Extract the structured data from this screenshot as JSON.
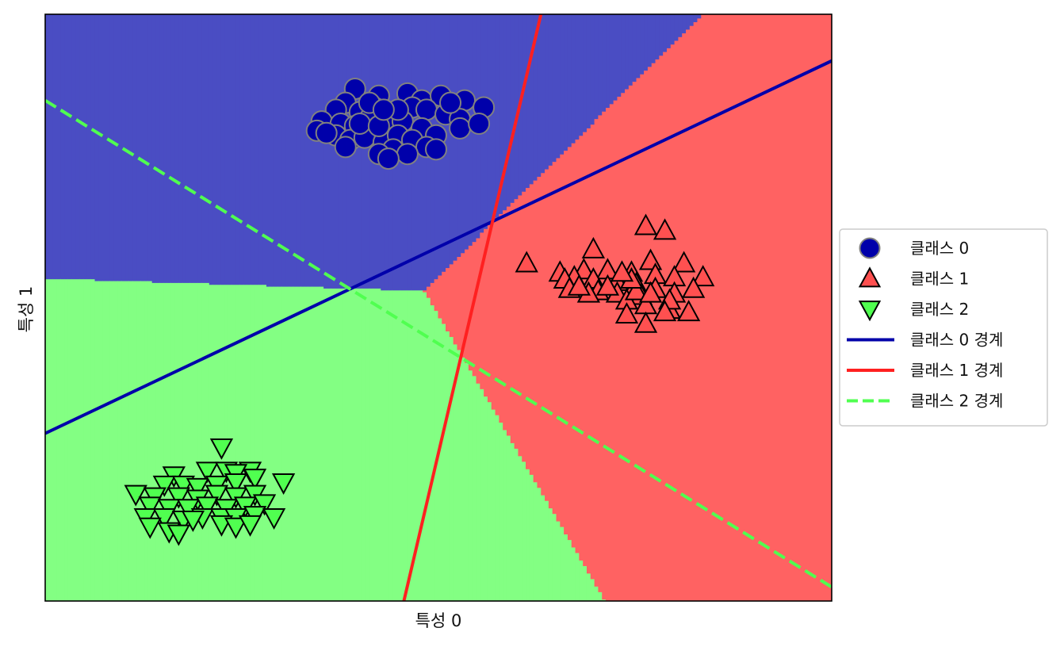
{
  "chart_data": {
    "type": "scatter",
    "title": "",
    "xlabel": "특성 0",
    "ylabel": "특성 1",
    "xlim": [
      -10.2,
      6.3
    ],
    "ylim": [
      -11.6,
      13.6
    ],
    "xticks_visible": false,
    "yticks_visible": false,
    "grid": false,
    "legend_position": "center-right-outside",
    "region_colors": [
      "#4a4dc3",
      "#ff6262",
      "#83ff83"
    ],
    "series": [
      {
        "name": "클래스 0",
        "marker": "circle",
        "color": "#0000aa",
        "edge_color": "#808080",
        "points": [
          [
            -3.7,
            10.4
          ],
          [
            -3.9,
            9.8
          ],
          [
            -3.2,
            10.1
          ],
          [
            -2.6,
            10.2
          ],
          [
            -2.3,
            9.9
          ],
          [
            -1.9,
            10.1
          ],
          [
            -1.6,
            9.7
          ],
          [
            -1.4,
            9.9
          ],
          [
            -4.1,
            9.5
          ],
          [
            -3.6,
            9.4
          ],
          [
            -3.3,
            9.6
          ],
          [
            -2.9,
            9.4
          ],
          [
            -2.5,
            9.6
          ],
          [
            -2.2,
            9.5
          ],
          [
            -1.8,
            9.3
          ],
          [
            -1.5,
            9.1
          ],
          [
            -4.4,
            9.0
          ],
          [
            -4.0,
            8.9
          ],
          [
            -3.7,
            8.8
          ],
          [
            -3.4,
            9.1
          ],
          [
            -3.0,
            8.8
          ],
          [
            -2.7,
            9.0
          ],
          [
            -2.3,
            8.7
          ],
          [
            -2.0,
            8.4
          ],
          [
            -4.5,
            8.6
          ],
          [
            -4.1,
            8.4
          ],
          [
            -3.8,
            8.2
          ],
          [
            -3.5,
            8.3
          ],
          [
            -3.1,
            8.1
          ],
          [
            -2.8,
            8.4
          ],
          [
            -2.5,
            8.2
          ],
          [
            -2.2,
            7.9
          ],
          [
            -4.3,
            8.5
          ],
          [
            -3.9,
            7.9
          ],
          [
            -2.9,
            7.8
          ],
          [
            -3.2,
            7.6
          ],
          [
            -2.6,
            7.6
          ],
          [
            -3.0,
            7.4
          ],
          [
            -1.7,
            9.8
          ],
          [
            -2.0,
            7.8
          ],
          [
            -3.4,
            9.8
          ],
          [
            -3.6,
            8.9
          ],
          [
            -2.8,
            9.5
          ],
          [
            -3.2,
            8.8
          ],
          [
            -1.5,
            8.7
          ],
          [
            -1.0,
            9.6
          ],
          [
            -1.1,
            8.9
          ],
          [
            -3.1,
            9.5
          ]
        ]
      },
      {
        "name": "클래스 1",
        "marker": "triangle-up",
        "color": "#ff5050",
        "edge_color": "#000000",
        "points": [
          [
            2.4,
            4.5
          ],
          [
            2.8,
            4.3
          ],
          [
            1.3,
            3.5
          ],
          [
            2.5,
            3.0
          ],
          [
            3.2,
            2.9
          ],
          [
            -0.1,
            2.9
          ],
          [
            0.6,
            2.5
          ],
          [
            1.1,
            2.6
          ],
          [
            1.6,
            2.6
          ],
          [
            2.1,
            2.5
          ],
          [
            2.6,
            2.4
          ],
          [
            3.0,
            2.3
          ],
          [
            3.6,
            2.3
          ],
          [
            0.9,
            2.3
          ],
          [
            0.7,
            2.2
          ],
          [
            1.3,
            2.2
          ],
          [
            1.8,
            2.1
          ],
          [
            2.2,
            2.0
          ],
          [
            2.6,
            1.8
          ],
          [
            3.0,
            1.6
          ],
          [
            3.4,
            1.8
          ],
          [
            1.4,
            1.7
          ],
          [
            1.8,
            1.6
          ],
          [
            2.3,
            1.5
          ],
          [
            2.0,
            1.3
          ],
          [
            2.4,
            1.1
          ],
          [
            2.9,
            0.9
          ],
          [
            3.3,
            0.8
          ],
          [
            0.8,
            1.8
          ],
          [
            1.6,
            1.9
          ],
          [
            2.2,
            1.7
          ],
          [
            2.0,
            0.7
          ],
          [
            2.4,
            0.3
          ],
          [
            1.2,
            1.6
          ],
          [
            2.1,
            2.2
          ],
          [
            1.9,
            2.5
          ],
          [
            2.9,
            1.3
          ],
          [
            2.5,
            1.6
          ],
          [
            1.0,
            1.9
          ],
          [
            2.8,
            0.8
          ]
        ]
      },
      {
        "name": "클래스 2",
        "marker": "triangle-down",
        "color": "#50ff50",
        "edge_color": "#000000",
        "points": [
          [
            -6.5,
            -5.0
          ],
          [
            -7.5,
            -6.2
          ],
          [
            -6.8,
            -6.0
          ],
          [
            -6.4,
            -6.0
          ],
          [
            -5.9,
            -6.0
          ],
          [
            -6.2,
            -6.1
          ],
          [
            -7.7,
            -6.6
          ],
          [
            -7.3,
            -6.6
          ],
          [
            -7.0,
            -6.7
          ],
          [
            -6.6,
            -6.6
          ],
          [
            -6.2,
            -6.5
          ],
          [
            -5.8,
            -6.3
          ],
          [
            -5.2,
            -6.5
          ],
          [
            -8.3,
            -7.0
          ],
          [
            -7.9,
            -7.1
          ],
          [
            -7.4,
            -7.1
          ],
          [
            -7.0,
            -7.2
          ],
          [
            -6.6,
            -7.0
          ],
          [
            -6.2,
            -7.1
          ],
          [
            -5.8,
            -7.0
          ],
          [
            -8.0,
            -7.5
          ],
          [
            -7.6,
            -7.6
          ],
          [
            -7.2,
            -7.6
          ],
          [
            -6.8,
            -7.5
          ],
          [
            -6.4,
            -7.6
          ],
          [
            -6.0,
            -7.5
          ],
          [
            -5.6,
            -7.4
          ],
          [
            -8.1,
            -8.0
          ],
          [
            -7.7,
            -8.0
          ],
          [
            -7.3,
            -8.1
          ],
          [
            -6.9,
            -8.0
          ],
          [
            -6.5,
            -8.0
          ],
          [
            -6.2,
            -8.0
          ],
          [
            -5.8,
            -7.9
          ],
          [
            -5.4,
            -8.0
          ],
          [
            -8.0,
            -8.4
          ],
          [
            -7.6,
            -8.6
          ],
          [
            -6.5,
            -8.3
          ],
          [
            -6.2,
            -8.4
          ],
          [
            -5.9,
            -8.3
          ],
          [
            -7.4,
            -8.7
          ],
          [
            -7.1,
            -8.1
          ]
        ]
      }
    ],
    "boundaries": [
      {
        "name": "클래스 0 경계",
        "color": "#0000aa",
        "dash": "solid",
        "x1": -10.2,
        "y1": -4.4,
        "x2": 6.3,
        "y2": 11.6
      },
      {
        "name": "클래스 1 경계",
        "color": "#ff2020",
        "dash": "solid",
        "x1": -2.675,
        "y1": -11.6,
        "x2": 0.2,
        "y2": 13.6
      },
      {
        "name": "클래스 2 경계",
        "color": "#50ff50",
        "dash": "dashed",
        "x1": -10.2,
        "y1": 9.9,
        "x2": 6.3,
        "y2": -11.0
      }
    ]
  }
}
